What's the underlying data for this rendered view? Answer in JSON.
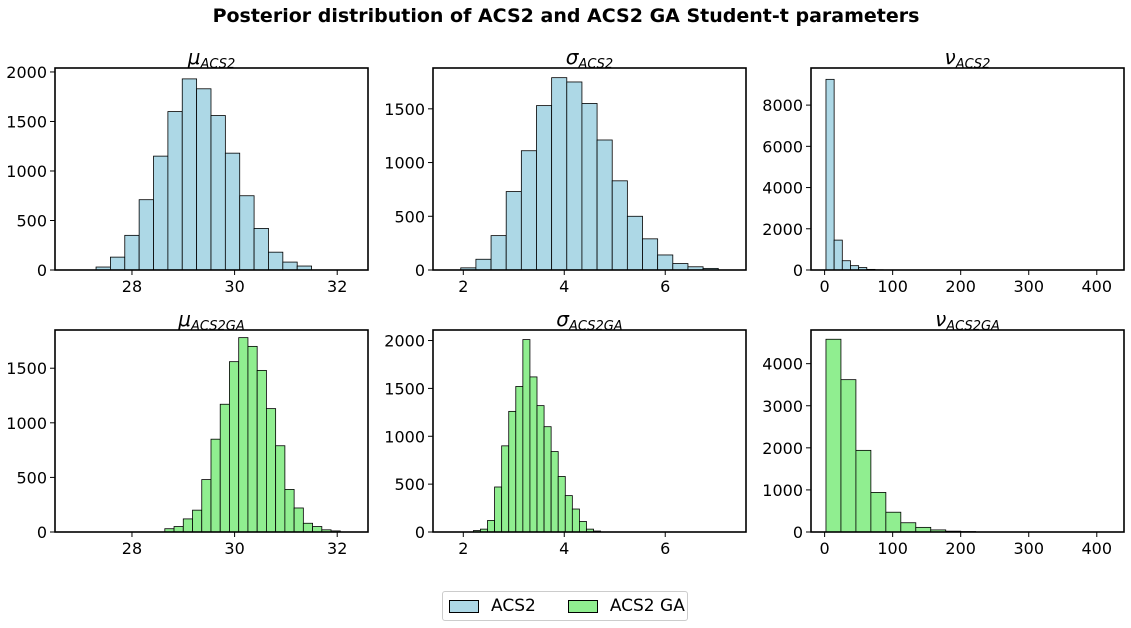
{
  "figure_title": "Posterior distribution of ACS2 and ACS2 GA Student-t parameters",
  "legend": {
    "items": [
      {
        "label": "ACS2",
        "color": "#add8e6"
      },
      {
        "label": "ACS2 GA",
        "color": "#90ee90"
      }
    ]
  },
  "colors": {
    "acs2": "#add8e6",
    "acs2ga": "#90ee90",
    "edge": "#000000"
  },
  "chart_data": [
    {
      "type": "bar",
      "title": "μ_ACS2",
      "title_symbol": "μ",
      "title_sub": "ACS2",
      "series": "ACS2",
      "xlim": [
        26.5,
        32.6
      ],
      "ylim": [
        0,
        2040
      ],
      "xticks": [
        28,
        30,
        32
      ],
      "yticks": [
        0,
        500,
        1000,
        1500,
        2000
      ],
      "bins": [
        {
          "x0": 27.3,
          "x1": 27.58,
          "count": 30
        },
        {
          "x0": 27.58,
          "x1": 27.86,
          "count": 130
        },
        {
          "x0": 27.86,
          "x1": 28.14,
          "count": 350
        },
        {
          "x0": 28.14,
          "x1": 28.42,
          "count": 710
        },
        {
          "x0": 28.42,
          "x1": 28.7,
          "count": 1150
        },
        {
          "x0": 28.7,
          "x1": 28.98,
          "count": 1600
        },
        {
          "x0": 28.98,
          "x1": 29.26,
          "count": 1930
        },
        {
          "x0": 29.26,
          "x1": 29.54,
          "count": 1830
        },
        {
          "x0": 29.54,
          "x1": 29.82,
          "count": 1560
        },
        {
          "x0": 29.82,
          "x1": 30.1,
          "count": 1180
        },
        {
          "x0": 30.1,
          "x1": 30.38,
          "count": 750
        },
        {
          "x0": 30.38,
          "x1": 30.66,
          "count": 420
        },
        {
          "x0": 30.66,
          "x1": 30.94,
          "count": 180
        },
        {
          "x0": 30.94,
          "x1": 31.22,
          "count": 80
        },
        {
          "x0": 31.22,
          "x1": 31.5,
          "count": 40
        }
      ]
    },
    {
      "type": "bar",
      "title": "σ_ACS2",
      "title_symbol": "σ",
      "title_sub": "ACS2",
      "series": "ACS2",
      "xlim": [
        1.4,
        7.6
      ],
      "ylim": [
        0,
        1880
      ],
      "xticks": [
        2,
        4,
        6
      ],
      "yticks": [
        0,
        500,
        1000,
        1500
      ],
      "bins": [
        {
          "x0": 1.95,
          "x1": 2.25,
          "count": 20
        },
        {
          "x0": 2.25,
          "x1": 2.55,
          "count": 100
        },
        {
          "x0": 2.55,
          "x1": 2.85,
          "count": 320
        },
        {
          "x0": 2.85,
          "x1": 3.15,
          "count": 730
        },
        {
          "x0": 3.15,
          "x1": 3.45,
          "count": 1110
        },
        {
          "x0": 3.45,
          "x1": 3.75,
          "count": 1530
        },
        {
          "x0": 3.75,
          "x1": 4.05,
          "count": 1790
        },
        {
          "x0": 4.05,
          "x1": 4.35,
          "count": 1750
        },
        {
          "x0": 4.35,
          "x1": 4.65,
          "count": 1550
        },
        {
          "x0": 4.65,
          "x1": 4.95,
          "count": 1210
        },
        {
          "x0": 4.95,
          "x1": 5.25,
          "count": 830
        },
        {
          "x0": 5.25,
          "x1": 5.55,
          "count": 500
        },
        {
          "x0": 5.55,
          "x1": 5.85,
          "count": 290
        },
        {
          "x0": 5.85,
          "x1": 6.15,
          "count": 140
        },
        {
          "x0": 6.15,
          "x1": 6.45,
          "count": 60
        },
        {
          "x0": 6.45,
          "x1": 6.75,
          "count": 30
        },
        {
          "x0": 6.75,
          "x1": 7.05,
          "count": 15
        }
      ]
    },
    {
      "type": "bar",
      "title": "ν_ACS2",
      "title_symbol": "ν",
      "title_sub": "ACS2",
      "series": "ACS2",
      "xlim": [
        -20,
        440
      ],
      "ylim": [
        0,
        9800
      ],
      "xticks": [
        0,
        100,
        200,
        300,
        400
      ],
      "yticks": [
        0,
        2000,
        4000,
        6000,
        8000
      ],
      "bins": [
        {
          "x0": 2,
          "x1": 14,
          "count": 9250
        },
        {
          "x0": 14,
          "x1": 26,
          "count": 1450
        },
        {
          "x0": 26,
          "x1": 38,
          "count": 450
        },
        {
          "x0": 38,
          "x1": 50,
          "count": 210
        },
        {
          "x0": 50,
          "x1": 62,
          "count": 120
        },
        {
          "x0": 62,
          "x1": 74,
          "count": 30
        },
        {
          "x0": 74,
          "x1": 86,
          "count": 10
        },
        {
          "x0": 86,
          "x1": 98,
          "count": 5
        }
      ]
    },
    {
      "type": "bar",
      "title": "μ_ACS2GA",
      "title_symbol": "μ",
      "title_sub": "ACS2GA",
      "series": "ACS2 GA",
      "xlim": [
        26.5,
        32.6
      ],
      "ylim": [
        0,
        1850
      ],
      "xticks": [
        28,
        30,
        32
      ],
      "yticks": [
        0,
        500,
        1000,
        1500
      ],
      "bins": [
        {
          "x0": 28.64,
          "x1": 28.82,
          "count": 30
        },
        {
          "x0": 28.82,
          "x1": 29.0,
          "count": 50
        },
        {
          "x0": 29.0,
          "x1": 29.18,
          "count": 120
        },
        {
          "x0": 29.18,
          "x1": 29.36,
          "count": 200
        },
        {
          "x0": 29.36,
          "x1": 29.54,
          "count": 480
        },
        {
          "x0": 29.54,
          "x1": 29.72,
          "count": 850
        },
        {
          "x0": 29.72,
          "x1": 29.9,
          "count": 1170
        },
        {
          "x0": 29.9,
          "x1": 30.08,
          "count": 1560
        },
        {
          "x0": 30.08,
          "x1": 30.26,
          "count": 1780
        },
        {
          "x0": 30.26,
          "x1": 30.44,
          "count": 1700
        },
        {
          "x0": 30.44,
          "x1": 30.62,
          "count": 1480
        },
        {
          "x0": 30.62,
          "x1": 30.8,
          "count": 1130
        },
        {
          "x0": 30.8,
          "x1": 30.98,
          "count": 790
        },
        {
          "x0": 30.98,
          "x1": 31.16,
          "count": 390
        },
        {
          "x0": 31.16,
          "x1": 31.34,
          "count": 220
        },
        {
          "x0": 31.34,
          "x1": 31.52,
          "count": 80
        },
        {
          "x0": 31.52,
          "x1": 31.7,
          "count": 50
        },
        {
          "x0": 31.7,
          "x1": 31.88,
          "count": 20
        },
        {
          "x0": 31.88,
          "x1": 32.06,
          "count": 10
        }
      ]
    },
    {
      "type": "bar",
      "title": "σ_ACS2GA",
      "title_symbol": "σ",
      "title_sub": "ACS2GA",
      "series": "ACS2 GA",
      "xlim": [
        1.4,
        7.6
      ],
      "ylim": [
        0,
        2110
      ],
      "xticks": [
        2,
        4,
        6
      ],
      "yticks": [
        0,
        500,
        1000,
        1500,
        2000
      ],
      "bins": [
        {
          "x0": 2.2,
          "x1": 2.34,
          "count": 15
        },
        {
          "x0": 2.34,
          "x1": 2.48,
          "count": 30
        },
        {
          "x0": 2.48,
          "x1": 2.62,
          "count": 120
        },
        {
          "x0": 2.62,
          "x1": 2.76,
          "count": 470
        },
        {
          "x0": 2.76,
          "x1": 2.9,
          "count": 900
        },
        {
          "x0": 2.9,
          "x1": 3.04,
          "count": 1260
        },
        {
          "x0": 3.04,
          "x1": 3.18,
          "count": 1520
        },
        {
          "x0": 3.18,
          "x1": 3.32,
          "count": 2010
        },
        {
          "x0": 3.32,
          "x1": 3.46,
          "count": 1620
        },
        {
          "x0": 3.46,
          "x1": 3.6,
          "count": 1320
        },
        {
          "x0": 3.6,
          "x1": 3.74,
          "count": 1100
        },
        {
          "x0": 3.74,
          "x1": 3.88,
          "count": 840
        },
        {
          "x0": 3.88,
          "x1": 4.02,
          "count": 580
        },
        {
          "x0": 4.02,
          "x1": 4.16,
          "count": 380
        },
        {
          "x0": 4.16,
          "x1": 4.3,
          "count": 240
        },
        {
          "x0": 4.3,
          "x1": 4.44,
          "count": 110
        },
        {
          "x0": 4.44,
          "x1": 4.58,
          "count": 30
        },
        {
          "x0": 4.58,
          "x1": 4.72,
          "count": 10
        }
      ]
    },
    {
      "type": "bar",
      "title": "ν_ACS2GA",
      "title_symbol": "ν",
      "title_sub": "ACS2GA",
      "series": "ACS2 GA",
      "xlim": [
        -20,
        440
      ],
      "ylim": [
        0,
        4800
      ],
      "xticks": [
        0,
        100,
        200,
        300,
        400
      ],
      "yticks": [
        0,
        1000,
        2000,
        3000,
        4000
      ],
      "bins": [
        {
          "x0": 2,
          "x1": 24,
          "count": 4580
        },
        {
          "x0": 24,
          "x1": 46,
          "count": 3620
        },
        {
          "x0": 46,
          "x1": 68,
          "count": 1940
        },
        {
          "x0": 68,
          "x1": 90,
          "count": 940
        },
        {
          "x0": 90,
          "x1": 112,
          "count": 470
        },
        {
          "x0": 112,
          "x1": 134,
          "count": 220
        },
        {
          "x0": 134,
          "x1": 156,
          "count": 110
        },
        {
          "x0": 156,
          "x1": 178,
          "count": 50
        },
        {
          "x0": 178,
          "x1": 200,
          "count": 20
        },
        {
          "x0": 200,
          "x1": 222,
          "count": 10
        }
      ]
    }
  ]
}
